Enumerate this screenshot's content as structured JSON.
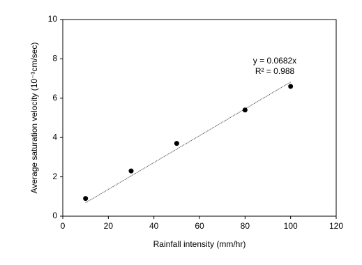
{
  "chart_data": {
    "type": "scatter",
    "xlabel": "Rainfall intensity (mm/hr)",
    "ylabel": "Average saturation velocity (10⁻³cm/sec)",
    "x": [
      10,
      30,
      50,
      80,
      100
    ],
    "values": [
      0.9,
      2.3,
      3.7,
      5.4,
      6.6
    ],
    "color": "#000000",
    "xlim": [
      0,
      120
    ],
    "xticks": [
      0,
      20,
      40,
      60,
      80,
      100,
      120
    ],
    "ylim": [
      0,
      10
    ],
    "yticks": [
      0,
      2,
      4,
      6,
      8,
      10
    ],
    "trendline": {
      "x": [
        10,
        100
      ],
      "y": [
        0.682,
        6.82
      ],
      "color": "#555555"
    },
    "annotations": [
      "y = 0.0682x",
      "R² = 0.988"
    ]
  }
}
